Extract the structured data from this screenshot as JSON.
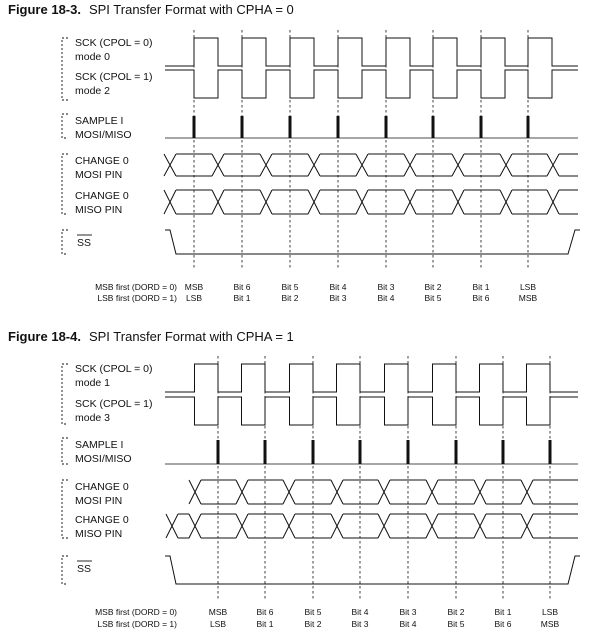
{
  "figures": [
    {
      "number": "Figure 18-3.",
      "title": "SPI Transfer Format with CPHA = 0",
      "signals": {
        "sck": [
          "SCK (CPOL = 0)",
          "mode 0",
          "SCK (CPOL = 1)",
          "mode 2"
        ],
        "sample": [
          "SAMPLE I",
          "MOSI/MISO"
        ],
        "change": [
          "CHANGE 0",
          "MOSI PIN",
          "CHANGE 0",
          "MISO PIN"
        ],
        "ss": "SS"
      },
      "order_labels": [
        "MSB first (DORD = 0)",
        "LSB first (DORD = 1)"
      ],
      "bits_msb": [
        "MSB",
        "Bit 6",
        "Bit 5",
        "Bit 4",
        "Bit 3",
        "Bit 2",
        "Bit 1",
        "LSB"
      ],
      "bits_lsb": [
        "LSB",
        "Bit 1",
        "Bit 2",
        "Bit 3",
        "Bit 4",
        "Bit 5",
        "Bit 6",
        "MSB"
      ]
    },
    {
      "number": "Figure 18-4.",
      "title": "SPI Transfer Format with CPHA = 1",
      "signals": {
        "sck": [
          "SCK (CPOL = 0)",
          "mode 1",
          "SCK (CPOL = 1)",
          "mode 3"
        ],
        "sample": [
          "SAMPLE I",
          "MOSI/MISO"
        ],
        "change": [
          "CHANGE 0",
          "MOSI PIN",
          "CHANGE 0",
          "MISO PIN"
        ],
        "ss": "SS"
      },
      "order_labels": [
        "MSB first (DORD = 0)",
        "LSB first (DORD = 1)"
      ],
      "bits_msb": [
        "MSB",
        "Bit 6",
        "Bit 5",
        "Bit 4",
        "Bit 3",
        "Bit 2",
        "Bit 1",
        "LSB"
      ],
      "bits_lsb": [
        "LSB",
        "Bit 1",
        "Bit 2",
        "Bit 3",
        "Bit 4",
        "Bit 5",
        "Bit 6",
        "MSB"
      ]
    }
  ]
}
